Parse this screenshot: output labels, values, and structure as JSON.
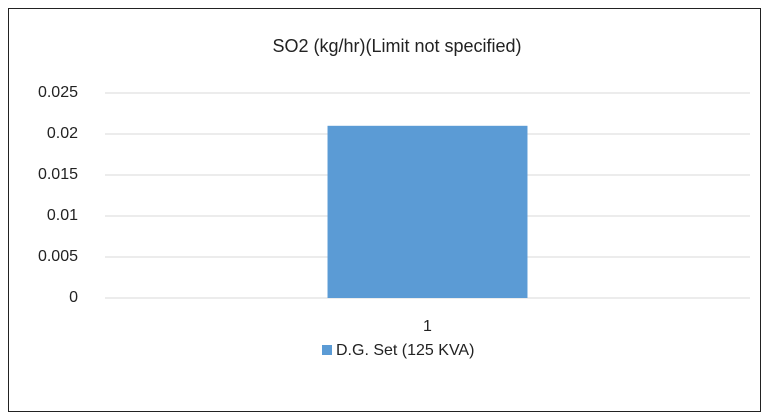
{
  "chart_data": {
    "type": "bar",
    "title": "SO2 (kg/hr)(Limit not specified)",
    "categories": [
      "1"
    ],
    "series": [
      {
        "name": "D.G. Set (125 KVA)",
        "color": "#5b9bd5",
        "values": [
          0.021
        ]
      }
    ],
    "ylim": [
      0,
      0.025
    ],
    "yticks": [
      0,
      0.005,
      0.01,
      0.015,
      0.02,
      0.025
    ],
    "grid": true,
    "legend": "bottom"
  }
}
